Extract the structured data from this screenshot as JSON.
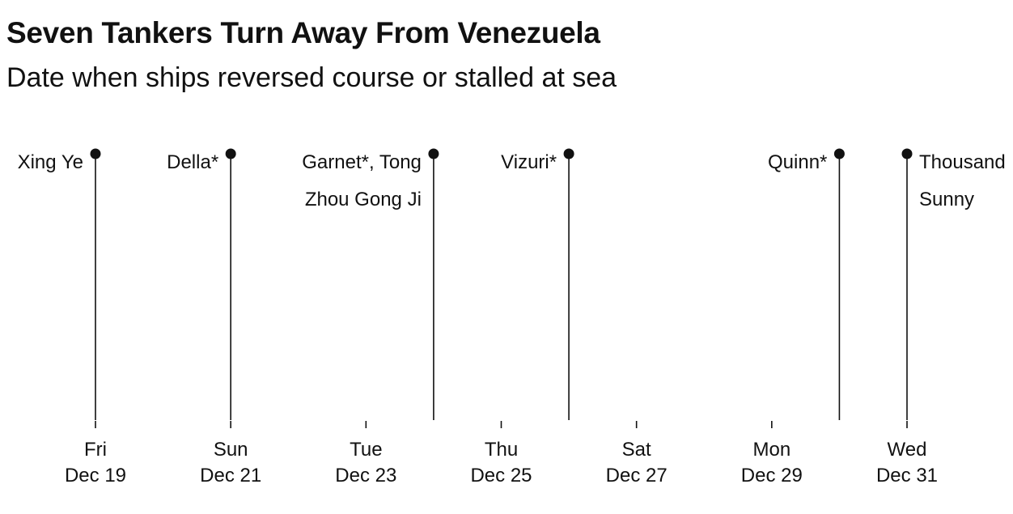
{
  "header": {
    "title": "Seven Tankers Turn Away From Venezuela",
    "subtitle": "Date when ships reversed course or stalled at sea"
  },
  "chart_data": {
    "type": "timeline",
    "title": "Seven Tankers Turn Away From Venezuela",
    "subtitle": "Date when ships reversed course or stalled at sea",
    "x_domain": [
      "2025-12-19",
      "2025-12-31"
    ],
    "ticks": [
      {
        "date": "2025-12-19",
        "day": "Fri",
        "label": "Dec 19"
      },
      {
        "date": "2025-12-21",
        "day": "Sun",
        "label": "Dec 21"
      },
      {
        "date": "2025-12-23",
        "day": "Tue",
        "label": "Dec 23"
      },
      {
        "date": "2025-12-25",
        "day": "Thu",
        "label": "Dec 25"
      },
      {
        "date": "2025-12-27",
        "day": "Sat",
        "label": "Dec 27"
      },
      {
        "date": "2025-12-29",
        "day": "Mon",
        "label": "Dec 29"
      },
      {
        "date": "2025-12-31",
        "day": "Wed",
        "label": "Dec 31"
      }
    ],
    "events": [
      {
        "date": "2025-12-19",
        "lines": [
          "Xing Ye"
        ],
        "side": "left"
      },
      {
        "date": "2025-12-21",
        "lines": [
          "Della*"
        ],
        "side": "left"
      },
      {
        "date": "2025-12-24",
        "lines": [
          "Garnet*, Tong",
          "Zhou Gong Ji"
        ],
        "side": "left"
      },
      {
        "date": "2025-12-26",
        "lines": [
          "Vizuri*"
        ],
        "side": "left"
      },
      {
        "date": "2025-12-30",
        "lines": [
          "Quinn*"
        ],
        "side": "left"
      },
      {
        "date": "2025-12-31",
        "lines": [
          "Thousand",
          "Sunny"
        ],
        "side": "right"
      }
    ],
    "colors": {
      "line": "#111111",
      "text": "#111111"
    }
  }
}
